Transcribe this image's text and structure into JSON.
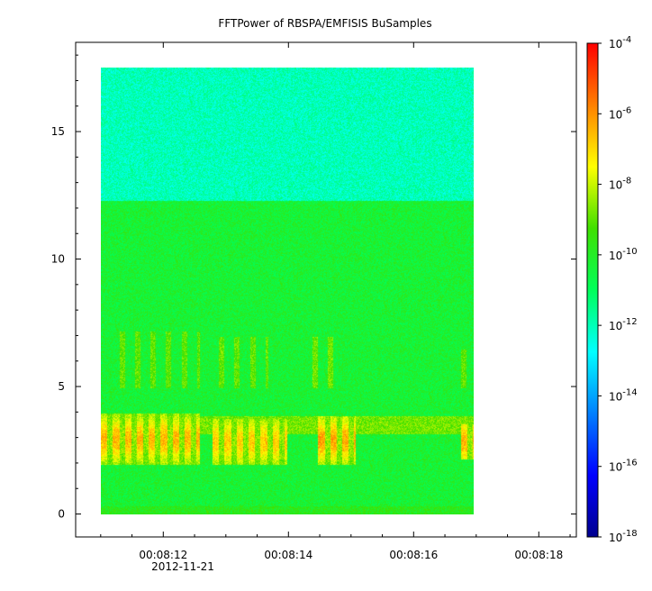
{
  "chart_data": {
    "type": "heatmap",
    "title": "FFTPower of RBSPA/EMFISIS  BuSamples",
    "xlabel": "",
    "ylabel": "",
    "x_date": "2012-11-21",
    "x_ticks": [
      "00:08:12",
      "00:08:14",
      "00:08:16",
      "00:08:18"
    ],
    "x_range": [
      "00:08:10.6",
      "00:08:18.6"
    ],
    "data_time_range": [
      "00:08:11.0",
      "00:08:17.0"
    ],
    "y_ticks": [
      "0",
      "5",
      "10",
      "15"
    ],
    "ylim": [
      -0.9,
      18.5
    ],
    "data_freq_range": [
      0,
      17.5
    ],
    "grid": false,
    "colorbar": {
      "scale": "log",
      "range": [
        1e-18,
        0.0001
      ],
      "ticks": [
        {
          "base": "10",
          "exp": "-4"
        },
        {
          "base": "10",
          "exp": "-6"
        },
        {
          "base": "10",
          "exp": "-8"
        },
        {
          "base": "10",
          "exp": "-10"
        },
        {
          "base": "10",
          "exp": "-12"
        },
        {
          "base": "10",
          "exp": "-14"
        },
        {
          "base": "10",
          "exp": "-16"
        },
        {
          "base": "10",
          "exp": "-18"
        }
      ],
      "tick_values": [
        -4,
        -6,
        -8,
        -10,
        -12,
        -14,
        -16,
        -18
      ]
    },
    "background_level": [
      {
        "freq_range": [
          12.3,
          17.5
        ],
        "log_power": -12.0
      },
      {
        "freq_range": [
          0.4,
          12.3
        ],
        "log_power": -10.3
      },
      {
        "freq_range": [
          0,
          0.4
        ],
        "log_power": -9.8
      }
    ],
    "features": [
      {
        "kind": "wave-band",
        "time_range": [
          "00:08:11.0",
          "00:08:17.0"
        ],
        "freq_range": [
          3.2,
          3.9
        ],
        "log_power": -8.8
      },
      {
        "kind": "chorus-burst",
        "time_range": [
          "00:08:11.0",
          "00:08:12.6"
        ],
        "freq_range": [
          2.0,
          4.0
        ],
        "peak_log_power": -6.5
      },
      {
        "kind": "chorus-burst",
        "time_range": [
          "00:08:12.8",
          "00:08:14.0"
        ],
        "freq_range": [
          2.0,
          3.8
        ],
        "peak_log_power": -6.8
      },
      {
        "kind": "chorus-burst",
        "time_range": [
          "00:08:14.5",
          "00:08:15.1"
        ],
        "freq_range": [
          2.0,
          3.9
        ],
        "peak_log_power": -6.3
      },
      {
        "kind": "chorus-burst",
        "time_range": [
          "00:08:16.8",
          "00:08:17.0"
        ],
        "freq_range": [
          2.2,
          3.6
        ],
        "peak_log_power": -6.5
      },
      {
        "kind": "streak",
        "time_range": [
          "00:08:11.3",
          "00:08:12.6"
        ],
        "freq_range": [
          5.0,
          7.2
        ],
        "log_power": -9.0
      },
      {
        "kind": "streak",
        "time_range": [
          "00:08:12.9",
          "00:08:13.7"
        ],
        "freq_range": [
          5.0,
          7.0
        ],
        "log_power": -9.0
      },
      {
        "kind": "streak",
        "time_range": [
          "00:08:14.4",
          "00:08:14.9"
        ],
        "freq_range": [
          5.0,
          7.0
        ],
        "log_power": -8.8
      },
      {
        "kind": "streak",
        "time_range": [
          "00:08:16.8",
          "00:08:17.0"
        ],
        "freq_range": [
          5.0,
          6.5
        ],
        "log_power": -9.0
      }
    ]
  }
}
